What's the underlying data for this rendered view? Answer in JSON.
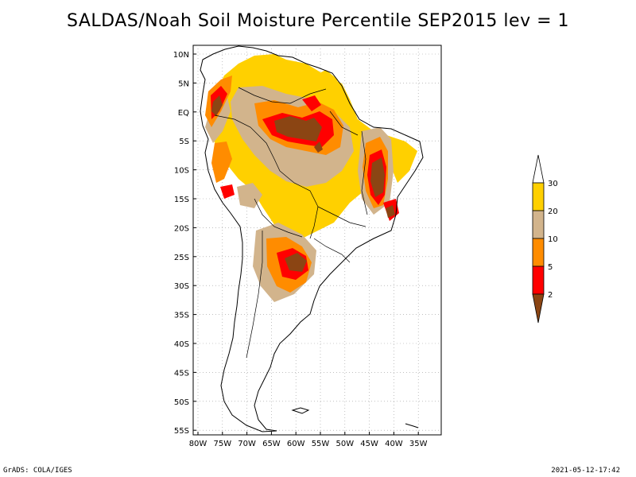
{
  "title": "SALDAS/Noah Soil Moisture Percentile SEP2015 lev = 1",
  "map": {
    "lat_labels": [
      "10N",
      "5N",
      "EQ",
      "5S",
      "10S",
      "15S",
      "20S",
      "25S",
      "30S",
      "35S",
      "40S",
      "45S",
      "50S",
      "55S"
    ],
    "lon_labels": [
      "80W",
      "75W",
      "70W",
      "65W",
      "60W",
      "55W",
      "50W",
      "45W",
      "40W",
      "35W"
    ]
  },
  "colorbar": {
    "labels": [
      "30",
      "20",
      "10",
      "5",
      "2"
    ],
    "colors": {
      "above30": "#ffffff",
      "20to30": "#ffd000",
      "10to20": "#d2b48c",
      "5to10": "#ff8c00",
      "2to5": "#ff0000",
      "below2": "#8b4513"
    }
  },
  "footer": {
    "left": "GrADS: COLA/IGES",
    "right": "2021-05-12-17:42"
  }
}
